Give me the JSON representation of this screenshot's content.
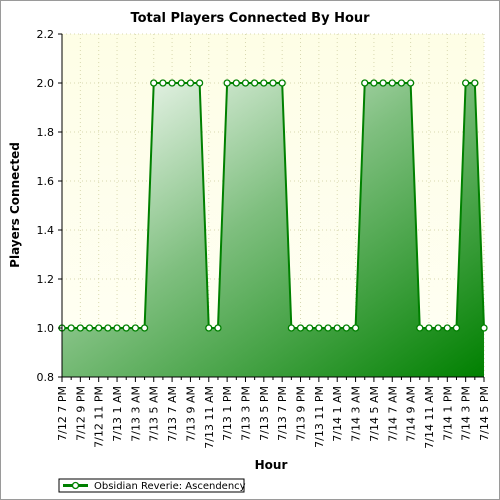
{
  "chart_data": {
    "type": "area",
    "title": "Total Players Connected By Hour",
    "xlabel": "Hour",
    "ylabel": "Players Connected",
    "ylim": [
      0.8,
      2.2
    ],
    "yticks": [
      "0.8",
      "1.0",
      "1.2",
      "1.4",
      "1.6",
      "1.8",
      "2.0",
      "2.2"
    ],
    "grid": true,
    "legend_position": "bottom-left",
    "xtick_labels": [
      "7/12 7 PM",
      "7/12 9 PM",
      "7/12 11 PM",
      "7/13 1 AM",
      "7/13 3 AM",
      "7/13 5 AM",
      "7/13 7 AM",
      "7/13 9 AM",
      "7/13 11 AM",
      "7/13 1 PM",
      "7/13 3 PM",
      "7/13 5 PM",
      "7/13 7 PM",
      "7/13 9 PM",
      "7/13 11 PM",
      "7/14 1 AM",
      "7/14 3 AM",
      "7/14 5 AM",
      "7/14 7 AM",
      "7/14 9 AM",
      "7/14 11 AM",
      "7/14 1 PM",
      "7/14 3 PM",
      "7/14 5 PM"
    ],
    "series": [
      {
        "name": "Obsidian Reverie: Ascendency",
        "color": "#008000",
        "x": [
          "7/12 7 PM",
          "7/12 8 PM",
          "7/12 9 PM",
          "7/12 10 PM",
          "7/12 11 PM",
          "7/13 12 AM",
          "7/13 1 AM",
          "7/13 2 AM",
          "7/13 3 AM",
          "7/13 4 AM",
          "7/13 5 AM",
          "7/13 6 AM",
          "7/13 7 AM",
          "7/13 8 AM",
          "7/13 9 AM",
          "7/13 10 AM",
          "7/13 11 AM",
          "7/13 12 PM",
          "7/13 1 PM",
          "7/13 2 PM",
          "7/13 3 PM",
          "7/13 4 PM",
          "7/13 5 PM",
          "7/13 6 PM",
          "7/13 7 PM",
          "7/13 8 PM",
          "7/13 9 PM",
          "7/13 10 PM",
          "7/13 11 PM",
          "7/14 12 AM",
          "7/14 1 AM",
          "7/14 2 AM",
          "7/14 3 AM",
          "7/14 4 AM",
          "7/14 5 AM",
          "7/14 6 AM",
          "7/14 7 AM",
          "7/14 8 AM",
          "7/14 9 AM",
          "7/14 10 AM",
          "7/14 11 AM",
          "7/14 12 PM",
          "7/14 1 PM",
          "7/14 2 PM",
          "7/14 3 PM",
          "7/14 4 PM",
          "7/14 5 PM"
        ],
        "values": [
          1,
          1,
          1,
          1,
          1,
          1,
          1,
          1,
          1,
          1,
          2,
          2,
          2,
          2,
          2,
          2,
          1,
          1,
          2,
          2,
          2,
          2,
          2,
          2,
          2,
          1,
          1,
          1,
          1,
          1,
          1,
          1,
          1,
          2,
          2,
          2,
          2,
          2,
          2,
          1,
          1,
          1,
          1,
          1,
          2,
          2,
          1
        ]
      }
    ]
  }
}
